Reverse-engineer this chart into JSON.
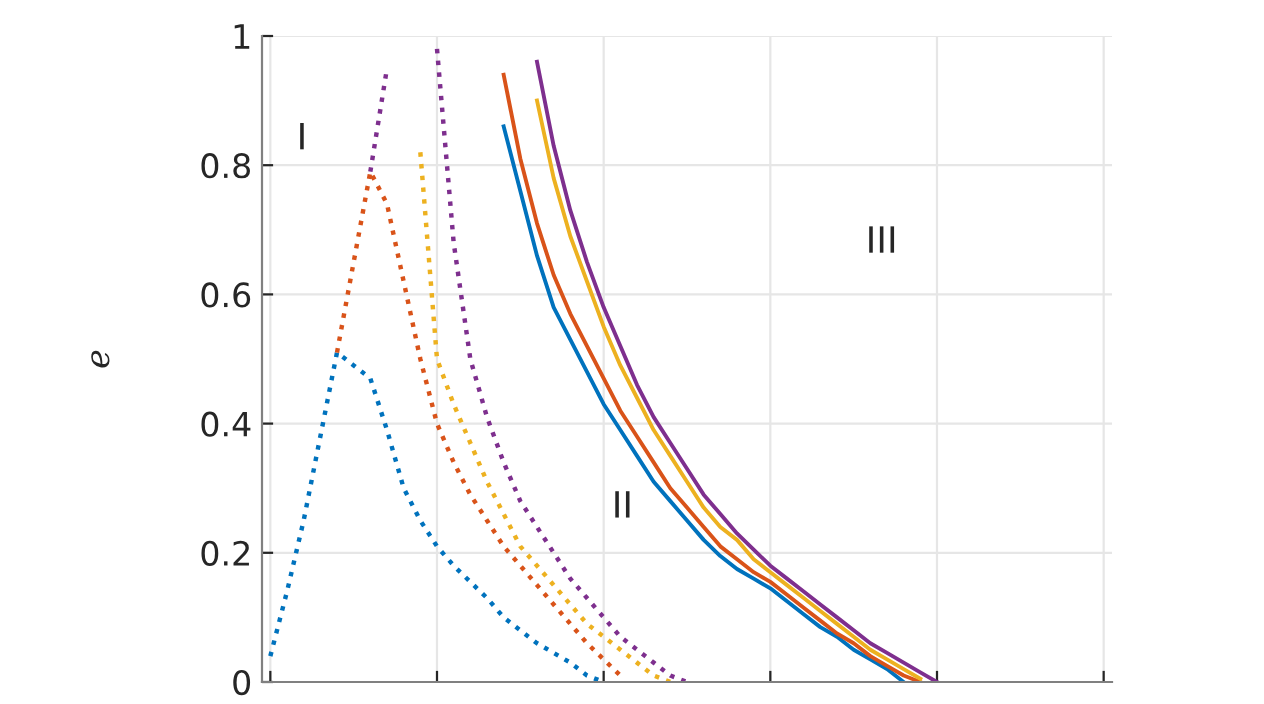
{
  "chart_data": {
    "type": "line",
    "ylabel": "e",
    "categories": [
      null,
      null,
      null,
      null,
      null,
      null,
      null,
      null,
      null,
      null,
      null,
      null,
      null,
      null,
      null,
      null,
      null,
      null,
      null,
      null,
      null,
      null,
      null,
      null,
      null,
      null,
      null,
      null,
      null,
      null,
      null,
      null,
      null,
      null,
      null,
      null,
      null,
      null,
      null,
      null,
      null,
      null,
      null,
      null,
      null,
      null,
      null,
      null,
      null,
      null,
      null
    ],
    "series": [
      {
        "color": "#0072bd",
        "line_style": "dotted",
        "values": [
          0.04,
          0.14,
          0.25,
          0.38,
          0.51,
          0.49,
          0.47,
          0.39,
          0.3,
          0.25,
          0.21,
          0.18,
          0.155,
          0.13,
          0.1,
          0.08,
          0.06,
          0.045,
          0.03,
          0.01,
          0.0,
          null,
          null,
          null,
          null,
          null,
          null,
          null,
          null,
          null,
          null,
          null,
          null,
          null,
          null,
          null,
          null,
          null,
          null,
          null,
          null,
          null,
          null,
          null,
          null,
          null,
          null,
          null,
          null,
          null,
          null
        ]
      },
      {
        "color": "#d95319",
        "line_style": "dotted",
        "values": [
          null,
          null,
          null,
          null,
          0.51,
          0.65,
          0.79,
          0.74,
          0.62,
          0.5,
          0.4,
          0.34,
          0.29,
          0.25,
          0.21,
          0.18,
          0.15,
          0.12,
          0.09,
          0.06,
          0.035,
          0.01,
          null,
          null,
          null,
          null,
          null,
          null,
          null,
          null,
          null,
          null,
          null,
          null,
          null,
          null,
          null,
          null,
          null,
          null,
          null,
          null,
          null,
          null,
          null,
          null,
          null,
          null,
          null,
          null,
          null
        ]
      },
      {
        "color": "#edb120",
        "line_style": "dotted",
        "values": [
          null,
          null,
          null,
          null,
          null,
          null,
          null,
          null,
          null,
          0.82,
          0.5,
          0.43,
          0.37,
          0.31,
          0.26,
          0.21,
          0.18,
          0.15,
          0.12,
          0.09,
          0.07,
          0.05,
          0.03,
          0.01,
          0.0,
          null,
          null,
          null,
          null,
          null,
          null,
          null,
          null,
          null,
          null,
          null,
          null,
          null,
          null,
          null,
          null,
          null,
          null,
          null,
          null,
          null,
          null,
          null,
          null,
          null,
          null
        ]
      },
      {
        "color": "#7e2f8e",
        "line_style": "dotted",
        "values": [
          null,
          null,
          null,
          null,
          null,
          null,
          0.79,
          0.95,
          null,
          null,
          0.98,
          0.68,
          0.5,
          0.41,
          0.34,
          0.28,
          0.24,
          0.2,
          0.16,
          0.13,
          0.1,
          0.07,
          0.05,
          0.03,
          0.01,
          0.0,
          null,
          null,
          null,
          null,
          null,
          null,
          null,
          null,
          null,
          null,
          null,
          null,
          null,
          null,
          null,
          null,
          null,
          null,
          null,
          null,
          null,
          null,
          null,
          null,
          null
        ]
      },
      {
        "color": "#0072bd",
        "line_style": "solid",
        "values": [
          null,
          null,
          null,
          null,
          null,
          null,
          null,
          null,
          null,
          null,
          null,
          null,
          null,
          null,
          0.86,
          0.76,
          0.66,
          0.58,
          0.53,
          0.48,
          0.43,
          0.39,
          0.35,
          0.31,
          0.28,
          0.25,
          0.22,
          0.195,
          0.175,
          0.16,
          0.145,
          0.125,
          0.105,
          0.085,
          0.07,
          0.05,
          0.035,
          0.02,
          0.0,
          null,
          null,
          null,
          null,
          null,
          null,
          null,
          null,
          null,
          null,
          null,
          null
        ]
      },
      {
        "color": "#d95319",
        "line_style": "solid",
        "values": [
          null,
          null,
          null,
          null,
          null,
          null,
          null,
          null,
          null,
          null,
          null,
          null,
          null,
          null,
          0.94,
          0.81,
          0.71,
          0.63,
          0.57,
          0.52,
          0.47,
          0.42,
          0.38,
          0.34,
          0.3,
          0.27,
          0.24,
          0.21,
          0.19,
          0.17,
          0.155,
          0.135,
          0.115,
          0.095,
          0.075,
          0.06,
          0.04,
          0.025,
          0.01,
          0.0,
          null,
          null,
          null,
          null,
          null,
          null,
          null,
          null,
          null,
          null,
          null
        ]
      },
      {
        "color": "#edb120",
        "line_style": "solid",
        "values": [
          null,
          null,
          null,
          null,
          null,
          null,
          null,
          null,
          null,
          null,
          null,
          null,
          null,
          null,
          null,
          null,
          0.9,
          0.78,
          0.69,
          0.62,
          0.55,
          0.49,
          0.44,
          0.39,
          0.35,
          0.31,
          0.27,
          0.24,
          0.22,
          0.19,
          0.17,
          0.15,
          0.13,
          0.11,
          0.09,
          0.07,
          0.05,
          0.035,
          0.02,
          0.005,
          null,
          null,
          null,
          null,
          null,
          null,
          null,
          null,
          null,
          null,
          null
        ]
      },
      {
        "color": "#7e2f8e",
        "line_style": "solid",
        "values": [
          null,
          null,
          null,
          null,
          null,
          null,
          null,
          null,
          null,
          null,
          null,
          null,
          null,
          null,
          null,
          null,
          0.96,
          0.83,
          0.73,
          0.65,
          0.58,
          0.52,
          0.46,
          0.41,
          0.37,
          0.33,
          0.29,
          0.26,
          0.23,
          0.205,
          0.18,
          0.16,
          0.14,
          0.12,
          0.1,
          0.08,
          0.06,
          0.045,
          0.03,
          0.015,
          0.0,
          null,
          null,
          null,
          null,
          null,
          null,
          null,
          null,
          null,
          null
        ]
      }
    ],
    "ylim": [
      0,
      1
    ],
    "yticks": [
      0,
      0.2,
      0.4,
      0.6,
      0.8,
      1
    ],
    "grid": true,
    "tick_labels": "y",
    "marker": "none",
    "annotations": [
      "I",
      "II",
      "III"
    ]
  }
}
